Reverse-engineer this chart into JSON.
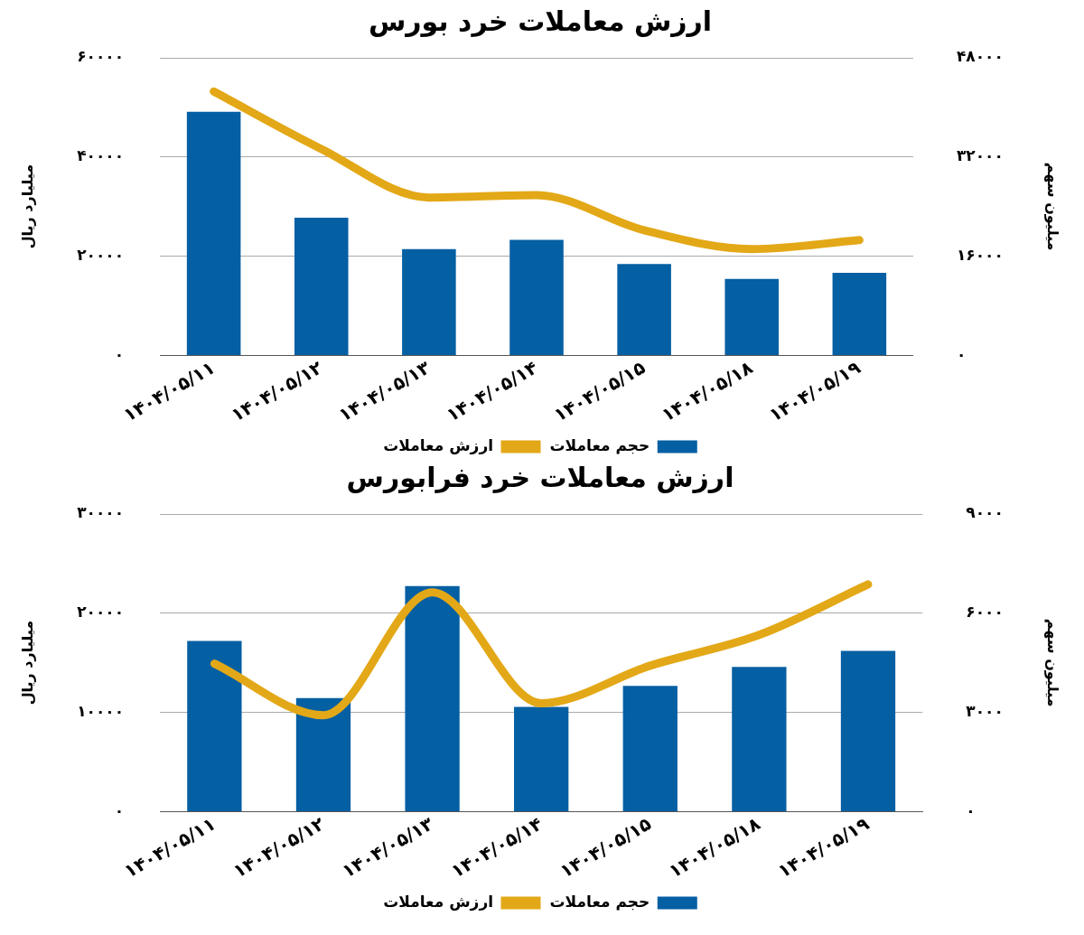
{
  "chart_data": [
    {
      "type": "bar",
      "title": "ارزش معاملات خرد بورس",
      "ylabel": "میلیارد ریال",
      "y2label": "میلیون سهم",
      "categories": [
        "۱۴۰۴/۰۵/۱۱",
        "۱۴۰۴/۰۵/۱۲",
        "۱۴۰۴/۰۵/۱۳",
        "۱۴۰۴/۰۵/۱۴",
        "۱۴۰۴/۰۵/۱۵",
        "۱۴۰۴/۰۵/۱۸",
        "۱۴۰۴/۰۵/۱۹"
      ],
      "series": [
        {
          "name": "حجم معاملات",
          "axis": "y2",
          "color": "#045fa3",
          "values": [
            39300,
            22200,
            17100,
            18600,
            14700,
            12300,
            13300
          ]
        },
        {
          "name": "ارزش معاملات",
          "type": "line",
          "color": "#e3a817",
          "values": [
            53200,
            41600,
            31800,
            32300,
            25200,
            21400,
            23200
          ]
        }
      ],
      "ylim": [
        0,
        60000
      ],
      "yticks": [
        {
          "value": 0,
          "label": "۰"
        },
        {
          "value": 20000,
          "label": "۲۰۰۰۰"
        },
        {
          "value": 40000,
          "label": "۴۰۰۰۰"
        },
        {
          "value": 60000,
          "label": "۶۰۰۰۰"
        }
      ],
      "y2lim": [
        0,
        48000
      ],
      "y2ticks": [
        {
          "value": 0,
          "label": "۰"
        },
        {
          "value": 16000,
          "label": "۱۶۰۰۰"
        },
        {
          "value": 32000,
          "label": "۳۲۰۰۰"
        },
        {
          "value": 48000,
          "label": "۴۸۰۰۰"
        }
      ],
      "grid": "y",
      "legend": "bottom",
      "marker": "none"
    },
    {
      "type": "bar",
      "title": "ارزش معاملات خرد فرابورس",
      "ylabel": "میلیارد ریال",
      "y2label": "میلیون سهم",
      "categories": [
        "۱۴۰۴/۰۵/۱۱",
        "۱۴۰۴/۰۵/۱۲",
        "۱۴۰۴/۰۵/۱۳",
        "۱۴۰۴/۰۵/۱۴",
        "۱۴۰۴/۰۵/۱۵",
        "۱۴۰۴/۰۵/۱۸",
        "۱۴۰۴/۰۵/۱۹"
      ],
      "series": [
        {
          "name": "حجم معاملات",
          "axis": "y2",
          "color": "#045fa3",
          "values": [
            5160,
            3430,
            6820,
            3160,
            3800,
            4370,
            4860
          ]
        },
        {
          "name": "ارزش معاملات",
          "type": "line",
          "color": "#e3a817",
          "values": [
            14900,
            9700,
            22100,
            10900,
            14700,
            17800,
            22900
          ]
        }
      ],
      "ylim": [
        0,
        30000
      ],
      "yticks": [
        {
          "value": 0,
          "label": "۰"
        },
        {
          "value": 10000,
          "label": "۱۰۰۰۰"
        },
        {
          "value": 20000,
          "label": "۲۰۰۰۰"
        },
        {
          "value": 30000,
          "label": "۳۰۰۰۰"
        }
      ],
      "y2lim": [
        0,
        9000
      ],
      "y2ticks": [
        {
          "value": 0,
          "label": "۰"
        },
        {
          "value": 3000,
          "label": "۳۰۰۰"
        },
        {
          "value": 6000,
          "label": "۶۰۰۰"
        },
        {
          "value": 9000,
          "label": "۹۰۰۰"
        }
      ],
      "grid": "y",
      "legend": "bottom",
      "marker": "none"
    }
  ]
}
